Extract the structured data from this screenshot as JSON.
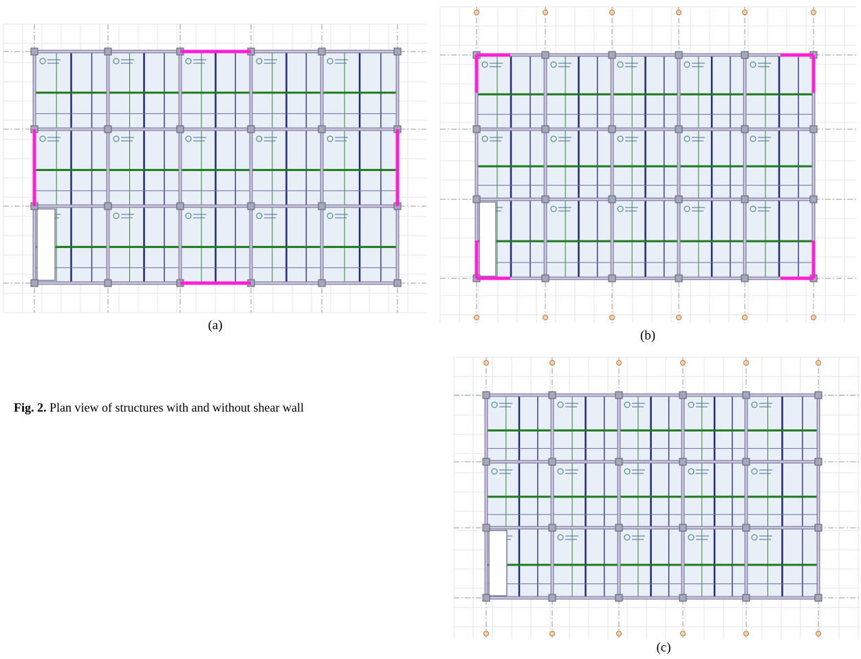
{
  "figure": {
    "panels": [
      {
        "label": "(a)"
      },
      {
        "label": "(b)"
      },
      {
        "label": "(c)"
      }
    ],
    "caption": {
      "label": "Fig. 2.",
      "text": "Plan view of structures with and without shear wall"
    }
  }
}
